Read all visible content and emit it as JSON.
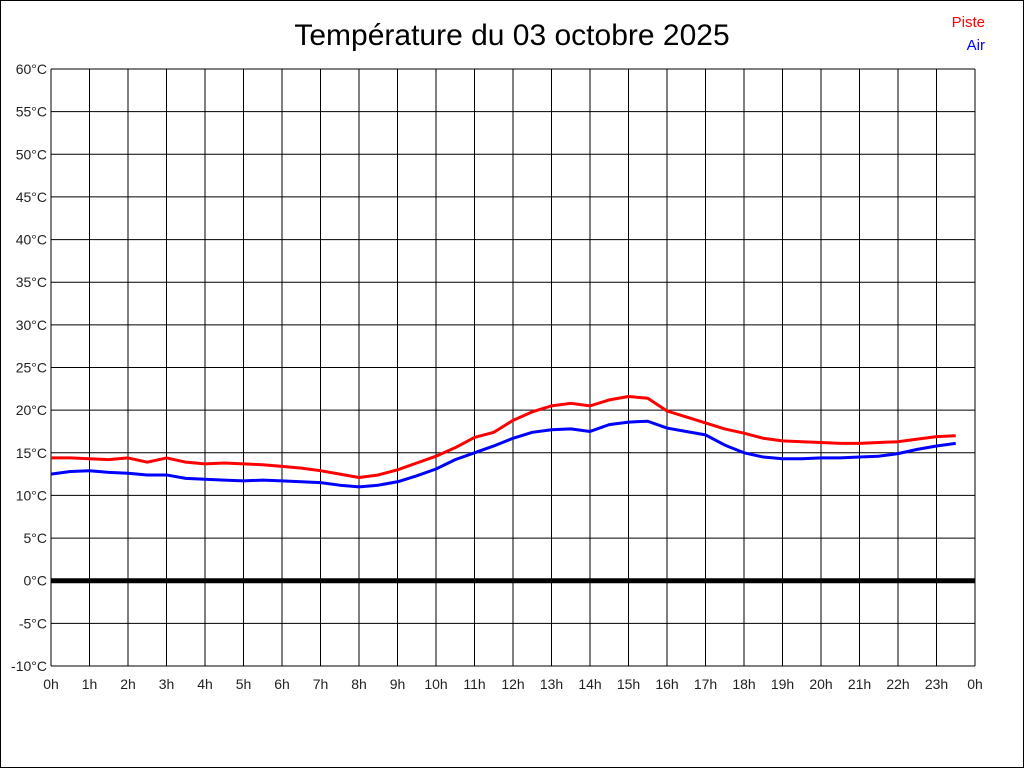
{
  "title": "Température du 03 octobre 2025",
  "legend": {
    "position": "top-right",
    "items": [
      {
        "label": "Piste",
        "color": "#ff0000"
      },
      {
        "label": "Air",
        "color": "#0000ff"
      }
    ]
  },
  "colors": {
    "background": "#ffffff",
    "grid": "#000000",
    "zero_line": "#000000",
    "tick_text": "#222222",
    "title_text": "#000000"
  },
  "chart_data": {
    "type": "line",
    "title": "Température du 03 octobre 2025",
    "xlabel": "",
    "ylabel": "",
    "x_unit": "h",
    "y_unit": "°C",
    "xlim": [
      0,
      24
    ],
    "ylim": [
      -10,
      60
    ],
    "x_tick_step": 1,
    "y_tick_step": 5,
    "grid": true,
    "legend_position": "top-right",
    "zero_line": {
      "value": 0,
      "color": "#000000",
      "width": 5
    },
    "y_tick_labels": [
      "60°C",
      "55°C",
      "50°C",
      "45°C",
      "40°C",
      "35°C",
      "30°C",
      "25°C",
      "20°C",
      "15°C",
      "10°C",
      "5°C",
      "0°C",
      "-5°C",
      "-10°C"
    ],
    "x_tick_labels": [
      "0h",
      "1h",
      "2h",
      "3h",
      "4h",
      "5h",
      "6h",
      "7h",
      "8h",
      "9h",
      "10h",
      "11h",
      "12h",
      "13h",
      "14h",
      "15h",
      "16h",
      "17h",
      "18h",
      "19h",
      "20h",
      "21h",
      "22h",
      "23h",
      "0h"
    ],
    "x": [
      0,
      0.5,
      1,
      1.5,
      2,
      2.5,
      3,
      3.5,
      4,
      4.5,
      5,
      5.5,
      6,
      6.5,
      7,
      7.5,
      8,
      8.5,
      9,
      9.5,
      10,
      10.5,
      11,
      11.5,
      12,
      12.5,
      13,
      13.5,
      14,
      14.5,
      15,
      15.5,
      16,
      16.5,
      17,
      17.5,
      18,
      18.5,
      19,
      19.5,
      20,
      20.5,
      21,
      21.5,
      22,
      22.5,
      23,
      23.5
    ],
    "series": [
      {
        "name": "Piste",
        "color": "#ff0000",
        "stroke_width": 3,
        "values": [
          14.4,
          14.4,
          14.3,
          14.2,
          14.4,
          13.9,
          14.4,
          13.9,
          13.7,
          13.8,
          13.7,
          13.6,
          13.4,
          13.2,
          12.9,
          12.5,
          12.1,
          12.4,
          13.0,
          13.8,
          14.6,
          15.6,
          16.8,
          17.4,
          18.8,
          19.8,
          20.5,
          20.8,
          20.5,
          21.2,
          21.6,
          21.4,
          19.9,
          19.2,
          18.5,
          17.8,
          17.3,
          16.7,
          16.4,
          16.3,
          16.2,
          16.1,
          16.1,
          16.2,
          16.3,
          16.6,
          16.9,
          17.0
        ]
      },
      {
        "name": "Air",
        "color": "#0000ff",
        "stroke_width": 3,
        "values": [
          12.5,
          12.8,
          12.9,
          12.7,
          12.6,
          12.4,
          12.4,
          12.0,
          11.9,
          11.8,
          11.7,
          11.8,
          11.7,
          11.6,
          11.5,
          11.2,
          11.0,
          11.2,
          11.6,
          12.3,
          13.1,
          14.2,
          15.0,
          15.8,
          16.7,
          17.4,
          17.7,
          17.8,
          17.5,
          18.3,
          18.6,
          18.7,
          17.9,
          17.5,
          17.1,
          15.9,
          15.0,
          14.5,
          14.3,
          14.3,
          14.4,
          14.4,
          14.5,
          14.6,
          14.9,
          15.4,
          15.8,
          16.1
        ]
      }
    ]
  }
}
